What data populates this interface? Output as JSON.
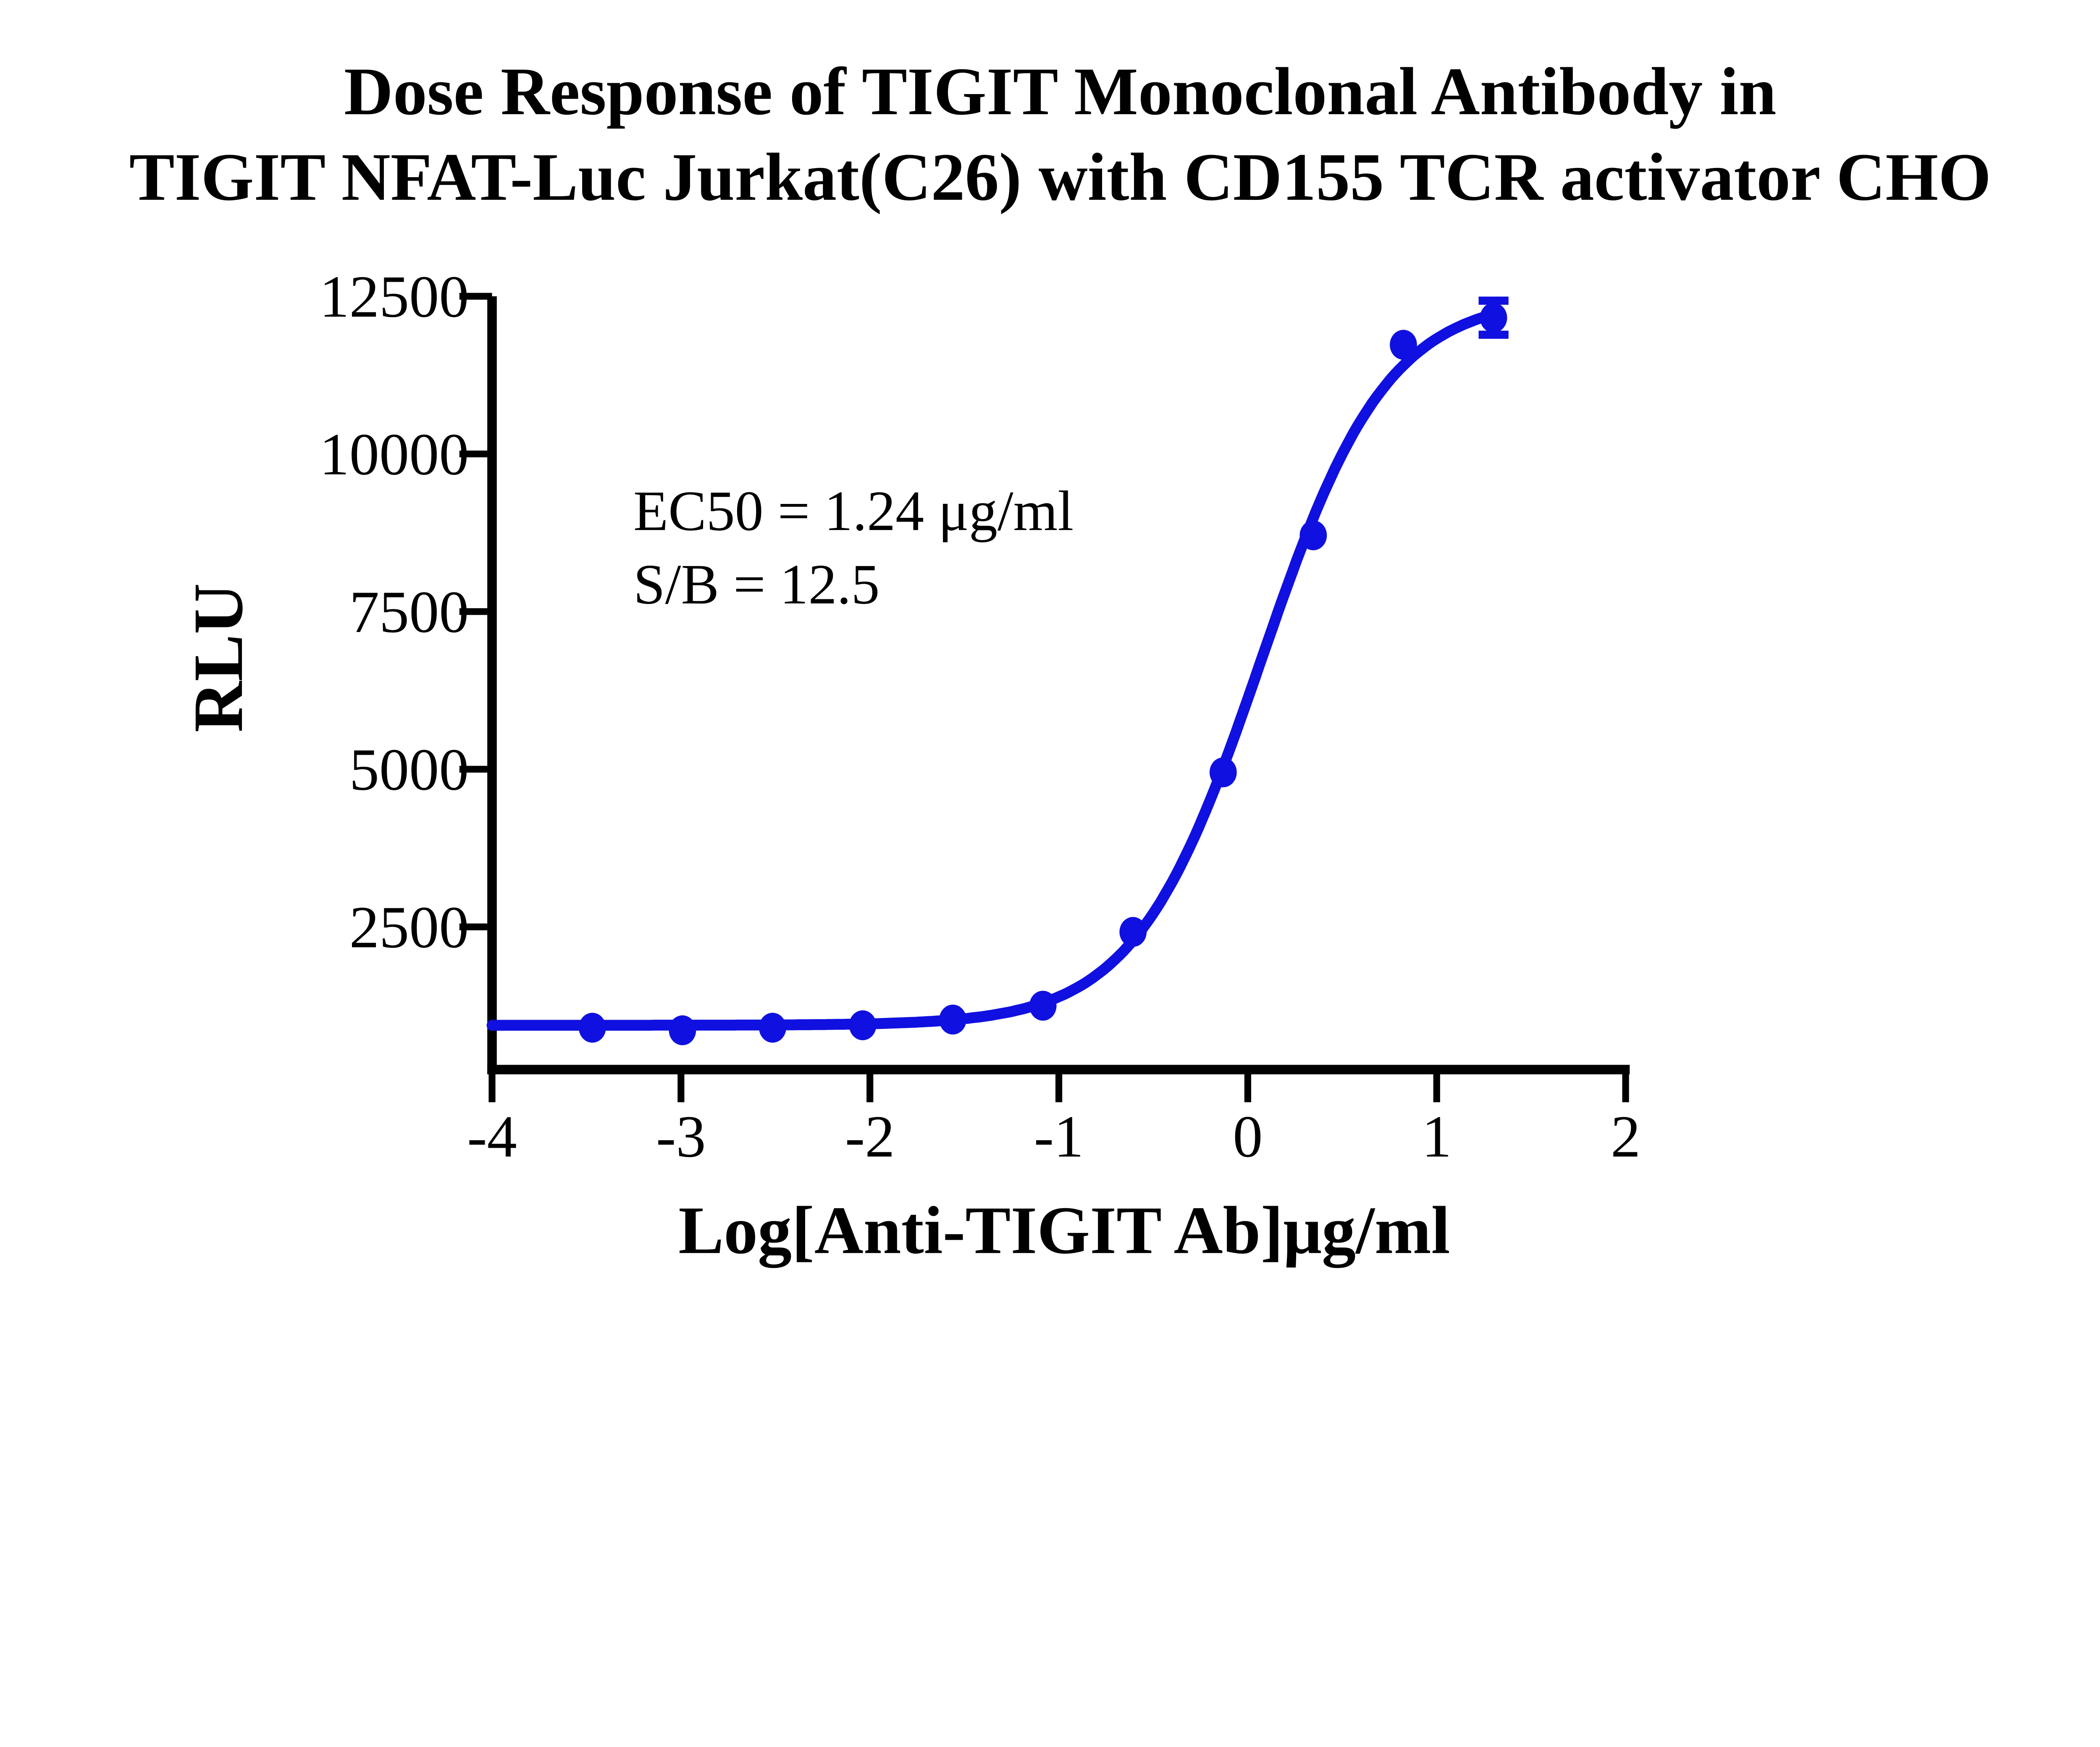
{
  "title": {
    "line1": "Dose Response of TIGIT Monoclonal Antibody in",
    "line2": "TIGIT NFAT-Luc Jurkat(C26) with CD155 TCR activator CHO"
  },
  "annotation": {
    "line1": "EC50 = 1.24 μg/ml",
    "line2": "S/B = 12.5"
  },
  "axes": {
    "x": {
      "label": "Log[Anti-TIGIT Ab]μg/ml",
      "ticks": [
        "-4",
        "-3",
        "-2",
        "-1",
        "0",
        "1",
        "2"
      ],
      "tick_values": [
        -4,
        -3,
        -2,
        -1,
        0,
        1,
        2
      ],
      "range": [
        -4,
        2
      ]
    },
    "y": {
      "label": "RLU",
      "ticks": [
        "2500",
        "5000",
        "7500",
        "10000",
        "12500"
      ],
      "tick_values": [
        2500,
        5000,
        7500,
        10000,
        12500
      ]
    }
  },
  "colors": {
    "curve": "#1010E0",
    "axis": "#000000",
    "text": "#000000",
    "background": "#FFFFFF"
  },
  "chart_data": {
    "type": "scatter",
    "title": "Dose Response of TIGIT Monoclonal Antibody in TIGIT NFAT-Luc Jurkat(C26) with CD155 TCR activator CHO",
    "xlabel": "Log[Anti-TIGIT Ab]μg/ml",
    "ylabel": "RLU",
    "xlim": [
      -4,
      2
    ],
    "ylim_axis_bottom": 250,
    "ylim": [
      250,
      12500
    ],
    "grid": false,
    "legend": "none",
    "series": [
      {
        "name": "Anti-TIGIT Ab",
        "marker": "filled-circle",
        "color": "#1010E0",
        "x": [
          -3.469,
          -2.992,
          -2.515,
          -2.038,
          -1.561,
          -1.084,
          -0.607,
          -0.13,
          0.347,
          0.824,
          1.301
        ],
        "y": [
          900,
          860,
          900,
          940,
          1030,
          1250,
          2420,
          4950,
          8710,
          11730,
          12160
        ]
      }
    ],
    "error_bars": [
      {
        "x": 1.301,
        "y": 12160,
        "plus": 270,
        "minus": 270
      }
    ],
    "fit_curve": {
      "model": "sigmoidal-4PL",
      "bottom": 940,
      "top": 12500,
      "logEC50": 0.07,
      "hill": 1.3,
      "x_start": -4.0,
      "x_end": 1.31
    },
    "annotations": [
      "EC50 = 1.24 μg/ml",
      "S/B = 12.5"
    ]
  }
}
